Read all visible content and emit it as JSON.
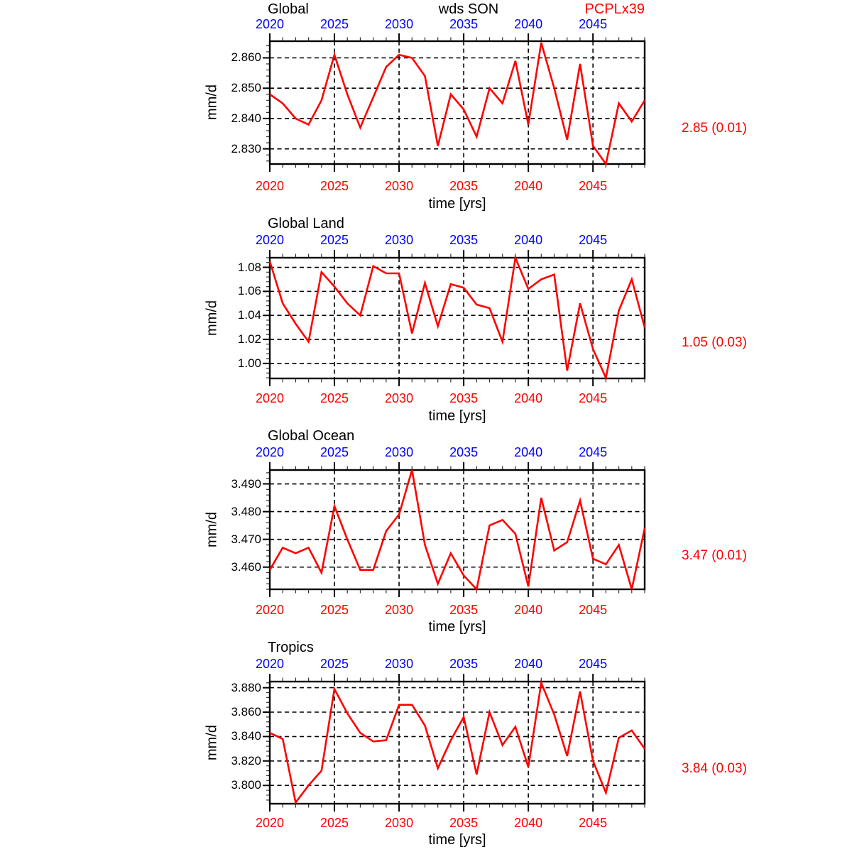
{
  "header": {
    "center_label": "wds SON",
    "right_label": "PCPLx39"
  },
  "colors": {
    "line": "#ff0000",
    "top_axis_years": "#0000ff",
    "bottom_axis_years": "#ff0000",
    "stat_text": "#ff0000",
    "text": "#000000",
    "grid": "#000000"
  },
  "years": [
    2020,
    2021,
    2022,
    2023,
    2024,
    2025,
    2026,
    2027,
    2028,
    2029,
    2030,
    2031,
    2032,
    2033,
    2034,
    2035,
    2036,
    2037,
    2038,
    2039,
    2040,
    2041,
    2042,
    2043,
    2044,
    2045,
    2046,
    2047,
    2048,
    2049
  ],
  "xtick_labels": [
    "2020",
    "2025",
    "2030",
    "2035",
    "2040",
    "2045"
  ],
  "xticks_major": [
    2020,
    2025,
    2030,
    2035,
    2040,
    2045
  ],
  "chart_data": [
    {
      "type": "line",
      "title": "Global",
      "ylabel": "mm/d",
      "xlabel": "time [yrs]",
      "stat_label": "2.85 (0.01)",
      "xlim": [
        2020,
        2049
      ],
      "ylim": [
        2.825,
        2.8655
      ],
      "ytick_values": [
        2.83,
        2.84,
        2.85,
        2.86
      ],
      "ytick_labels": [
        "2.830",
        "2.840",
        "2.850",
        "2.860"
      ],
      "y_minor_step": 0.002,
      "grid": true,
      "values": [
        2.848,
        2.845,
        2.84,
        2.838,
        2.846,
        2.861,
        2.848,
        2.837,
        2.847,
        2.857,
        2.861,
        2.86,
        2.854,
        2.831,
        2.848,
        2.843,
        2.834,
        2.85,
        2.845,
        2.859,
        2.838,
        2.865,
        2.85,
        2.833,
        2.858,
        2.831,
        2.825,
        2.845,
        2.839,
        2.846
      ]
    },
    {
      "type": "line",
      "title": "Global Land",
      "ylabel": "mm/d",
      "xlabel": "time [yrs]",
      "stat_label": "1.05 (0.03)",
      "xlim": [
        2020,
        2049
      ],
      "ylim": [
        0.9875,
        1.088
      ],
      "ytick_values": [
        1.0,
        1.02,
        1.04,
        1.06,
        1.08
      ],
      "ytick_labels": [
        "1.00",
        "1.02",
        "1.04",
        "1.06",
        "1.08"
      ],
      "y_minor_step": 0.004,
      "grid": true,
      "values": [
        1.085,
        1.05,
        1.033,
        1.018,
        1.076,
        1.064,
        1.05,
        1.04,
        1.081,
        1.075,
        1.075,
        1.025,
        1.067,
        1.031,
        1.066,
        1.063,
        1.049,
        1.046,
        1.018,
        1.088,
        1.062,
        1.07,
        1.074,
        0.994,
        1.05,
        1.012,
        0.988,
        1.044,
        1.07,
        1.03
      ]
    },
    {
      "type": "line",
      "title": "Global Ocean",
      "ylabel": "mm/d",
      "xlabel": "time [yrs]",
      "stat_label": "3.47 (0.01)",
      "xlim": [
        2020,
        2049
      ],
      "ylim": [
        3.452,
        3.495
      ],
      "ytick_values": [
        3.46,
        3.47,
        3.48,
        3.49
      ],
      "ytick_labels": [
        "3.460",
        "3.470",
        "3.480",
        "3.490"
      ],
      "y_minor_step": 0.002,
      "grid": true,
      "values": [
        3.459,
        3.467,
        3.465,
        3.467,
        3.458,
        3.482,
        3.47,
        3.459,
        3.459,
        3.473,
        3.479,
        3.495,
        3.468,
        3.454,
        3.465,
        3.457,
        3.452,
        3.475,
        3.477,
        3.472,
        3.453,
        3.485,
        3.466,
        3.469,
        3.484,
        3.463,
        3.461,
        3.468,
        3.452,
        3.474
      ]
    },
    {
      "type": "line",
      "title": "Tropics",
      "ylabel": "mm/d",
      "xlabel": "time [yrs]",
      "stat_label": "3.84 (0.03)",
      "xlim": [
        2020,
        2049
      ],
      "ylim": [
        3.785,
        3.885
      ],
      "ytick_values": [
        3.8,
        3.82,
        3.84,
        3.86,
        3.88
      ],
      "ytick_labels": [
        "3.800",
        "3.820",
        "3.840",
        "3.860",
        "3.880"
      ],
      "y_minor_step": 0.004,
      "grid": true,
      "values": [
        3.843,
        3.838,
        3.786,
        3.8,
        3.812,
        3.879,
        3.859,
        3.843,
        3.836,
        3.837,
        3.866,
        3.866,
        3.849,
        3.814,
        3.837,
        3.856,
        3.809,
        3.86,
        3.833,
        3.848,
        3.815,
        3.884,
        3.858,
        3.824,
        3.877,
        3.82,
        3.794,
        3.839,
        3.845,
        3.83
      ]
    }
  ]
}
